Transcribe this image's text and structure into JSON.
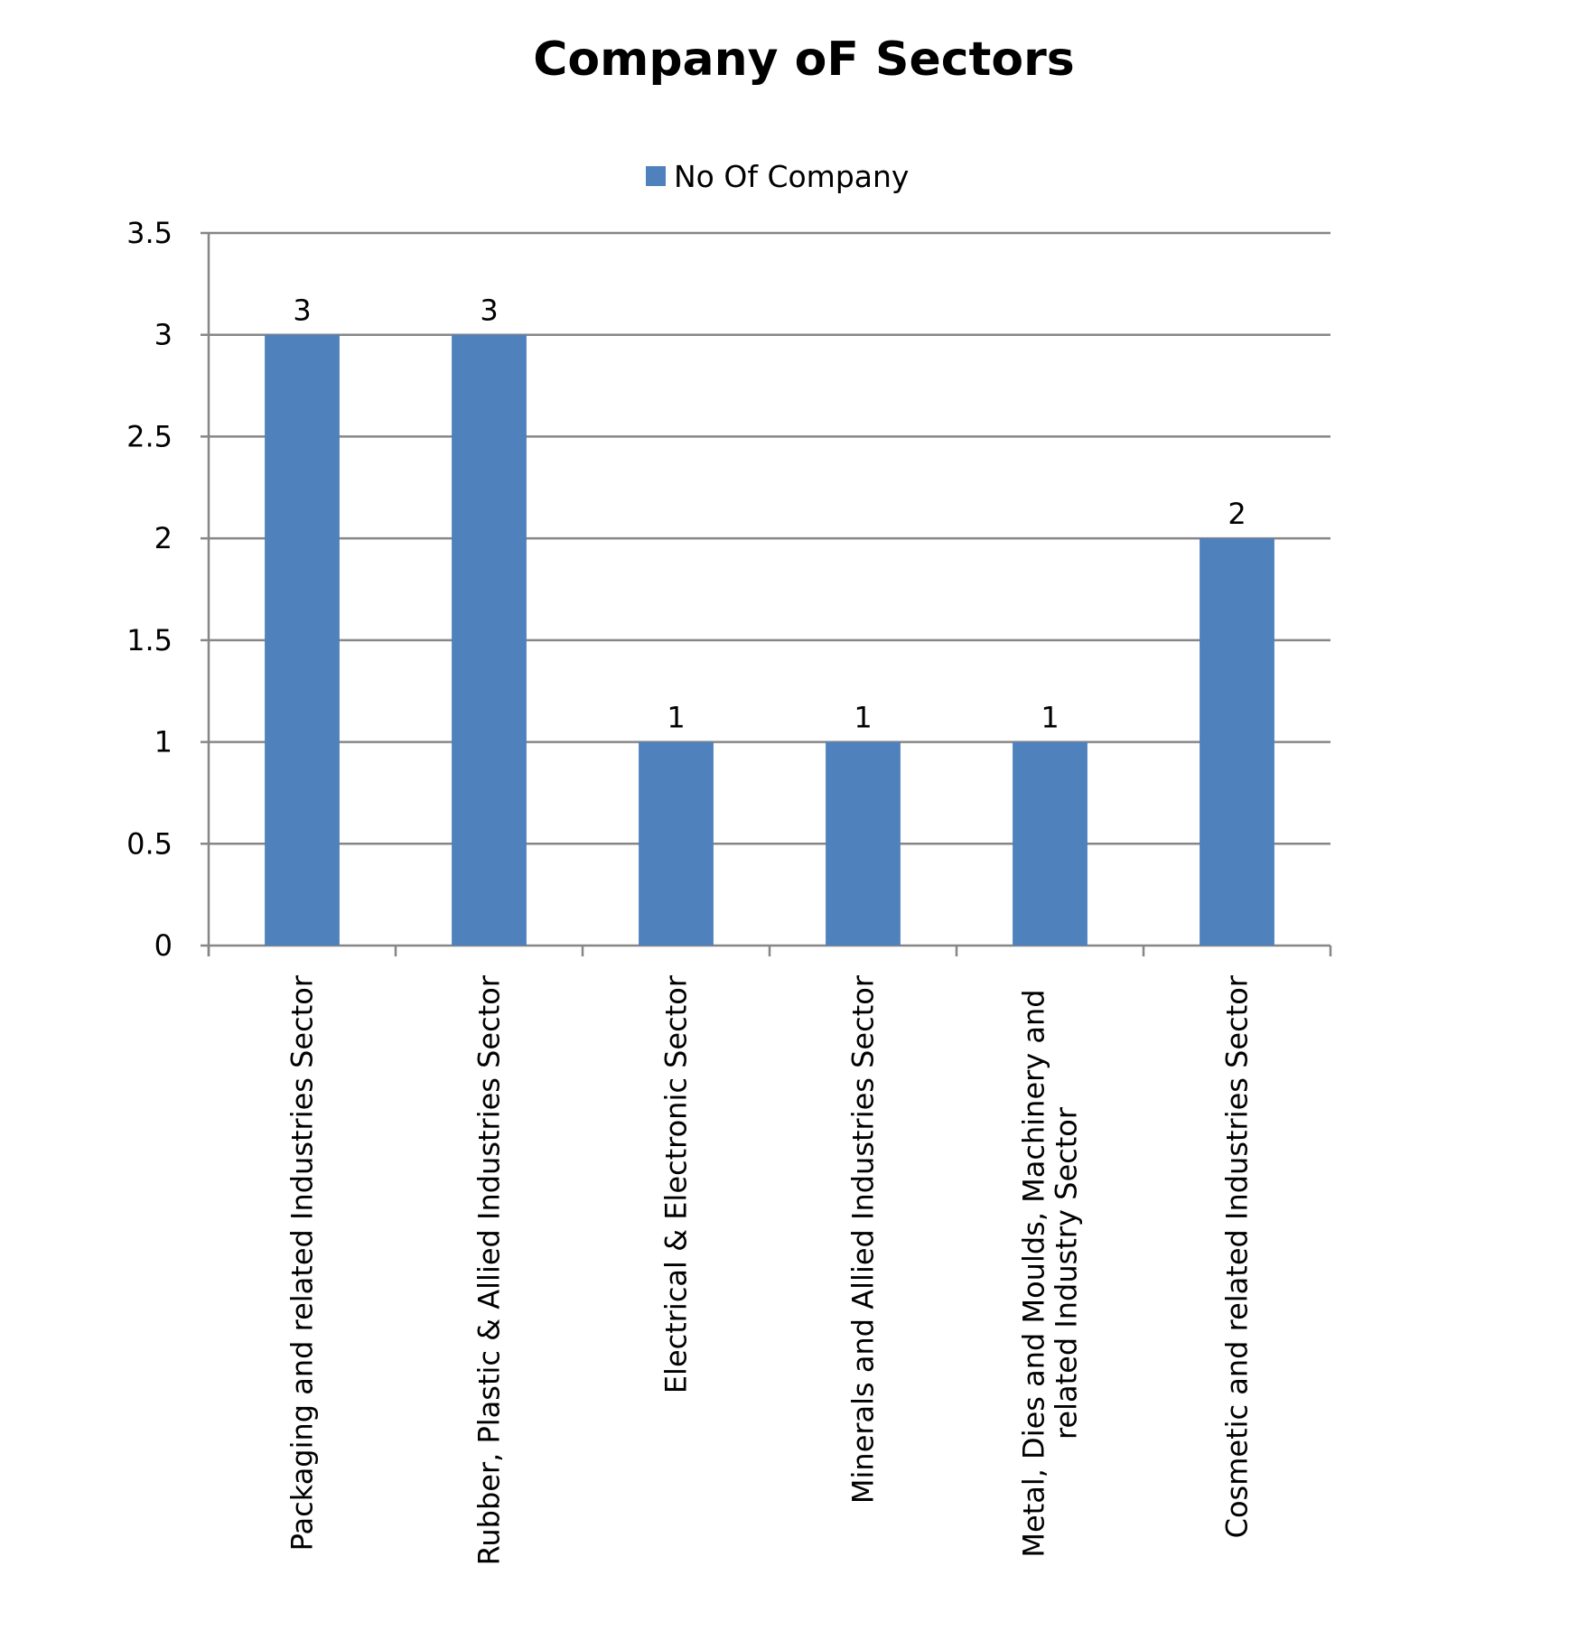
{
  "chart_data": {
    "type": "bar",
    "title": "Company oF Sectors",
    "xlabel": "",
    "ylabel": "",
    "ylim": [
      0,
      3.5
    ],
    "yticks": [
      "0",
      "0.5",
      "1",
      "1.5",
      "2",
      "2.5",
      "3",
      "3.5"
    ],
    "grid": true,
    "legend_position": "top",
    "categories": [
      "Packaging and related Industries Sector",
      "Rubber, Plastic & Allied Industries Sector",
      "Electrical & Electronic Sector",
      "Minerals and Allied Industries Sector",
      "Metal, Dies and Moulds, Machinery and related Industry Sector",
      "Cosmetic and related Industries Sector"
    ],
    "category_lines": [
      [
        "Packaging and related Industries Sector"
      ],
      [
        "Rubber, Plastic & Allied Industries Sector"
      ],
      [
        "Electrical & Electronic Sector"
      ],
      [
        "Minerals and Allied Industries Sector"
      ],
      [
        "Metal, Dies and Moulds, Machinery and",
        "related Industry Sector"
      ],
      [
        "Cosmetic and related Industries Sector"
      ]
    ],
    "series": [
      {
        "name": "No Of Company",
        "values": [
          3,
          3,
          1,
          1,
          1,
          2
        ],
        "color": "#4F81BD"
      }
    ],
    "data_labels": [
      "3",
      "3",
      "1",
      "1",
      "1",
      "2"
    ]
  }
}
